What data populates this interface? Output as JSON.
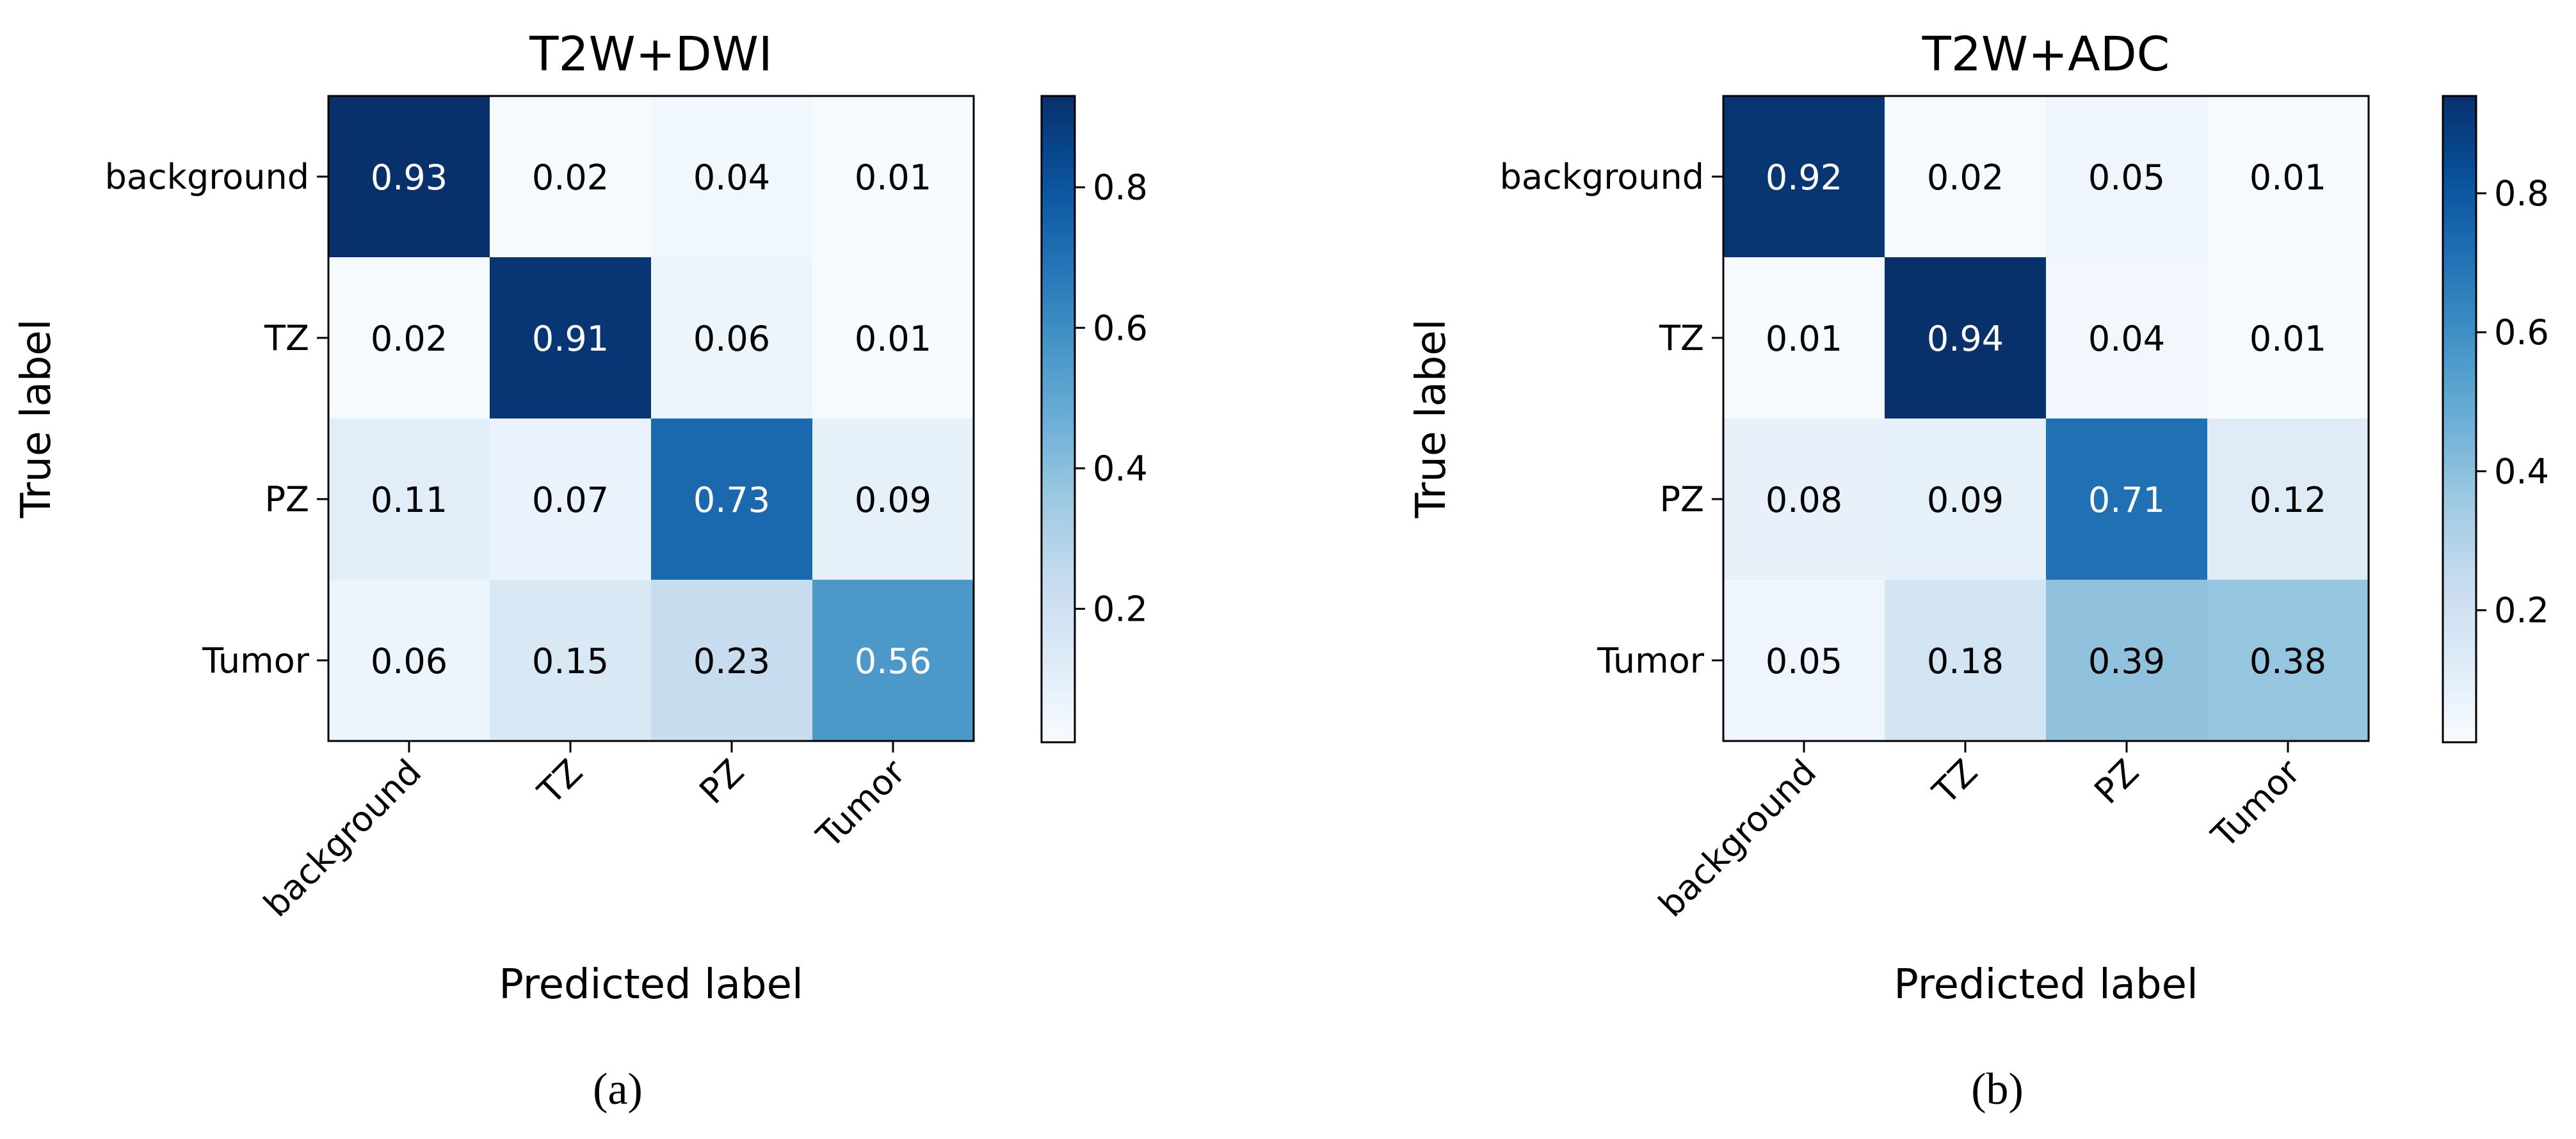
{
  "chart_data": [
    {
      "type": "heatmap",
      "title": "T2W+DWI",
      "xlabel": "Predicted label",
      "ylabel": "True label",
      "x_categories": [
        "background",
        "TZ",
        "PZ",
        "Tumor"
      ],
      "y_categories": [
        "background",
        "TZ",
        "PZ",
        "Tumor"
      ],
      "values": [
        [
          0.93,
          0.02,
          0.04,
          0.01
        ],
        [
          0.02,
          0.91,
          0.06,
          0.01
        ],
        [
          0.11,
          0.07,
          0.73,
          0.09
        ],
        [
          0.06,
          0.15,
          0.23,
          0.56
        ]
      ],
      "labels": [
        [
          "0.93",
          "0.02",
          "0.04",
          "0.01"
        ],
        [
          "0.02",
          "0.91",
          "0.06",
          "0.01"
        ],
        [
          "0.11",
          "0.07",
          "0.73",
          "0.09"
        ],
        [
          "0.06",
          "0.15",
          "0.23",
          "0.56"
        ]
      ],
      "colormap": "Blues",
      "vmin": 0.01,
      "vmax": 0.93,
      "colorbar_ticks": [
        "0.2",
        "0.4",
        "0.6",
        "0.8"
      ],
      "colorbar_tick_values": [
        0.2,
        0.4,
        0.6,
        0.8
      ],
      "caption": "(a)"
    },
    {
      "type": "heatmap",
      "title": "T2W+ADC",
      "xlabel": "Predicted label",
      "ylabel": "True label",
      "x_categories": [
        "background",
        "TZ",
        "PZ",
        "Tumor"
      ],
      "y_categories": [
        "background",
        "TZ",
        "PZ",
        "Tumor"
      ],
      "values": [
        [
          0.92,
          0.02,
          0.05,
          0.01
        ],
        [
          0.01,
          0.94,
          0.04,
          0.01
        ],
        [
          0.08,
          0.09,
          0.71,
          0.12
        ],
        [
          0.05,
          0.18,
          0.39,
          0.38
        ]
      ],
      "labels": [
        [
          "0.92",
          "0.02",
          "0.05",
          "0.01"
        ],
        [
          "0.01",
          "0.94",
          "0.04",
          "0.01"
        ],
        [
          "0.08",
          "0.09",
          "0.71",
          "0.12"
        ],
        [
          "0.05",
          "0.18",
          "0.39",
          "0.38"
        ]
      ],
      "colormap": "Blues",
      "vmin": 0.01,
      "vmax": 0.94,
      "colorbar_ticks": [
        "0.2",
        "0.4",
        "0.6",
        "0.8"
      ],
      "colorbar_tick_values": [
        0.2,
        0.4,
        0.6,
        0.8
      ],
      "caption": "(b)"
    }
  ]
}
